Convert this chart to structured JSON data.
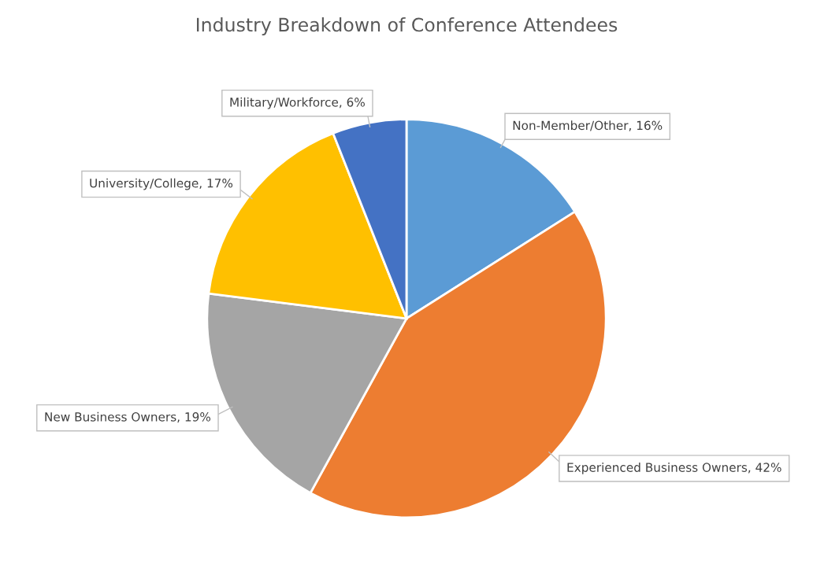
{
  "chart_data": {
    "type": "pie",
    "title": "Industry Breakdown of Conference Attendees",
    "categories": [
      "Non-Member/Other",
      "Experienced Business Owners",
      "New Business Owners",
      "University/College",
      "Military/Workforce"
    ],
    "values": [
      16,
      42,
      19,
      17,
      6
    ],
    "value_labels": [
      "16%",
      "42%",
      "19%",
      "17%",
      "6%"
    ],
    "colors": [
      "#5b9bd5",
      "#ed7d31",
      "#a5a5a5",
      "#ffc000",
      "#4472c4"
    ],
    "legend": false
  }
}
